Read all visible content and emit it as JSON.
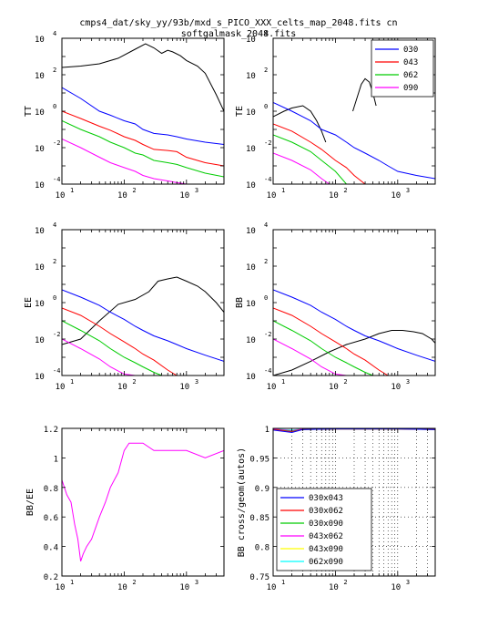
{
  "figure": {
    "title_line1": "cmps4_dat/sky_yy/93b/mxd_s_PICO_XXX_celts_map_2048.fits cn",
    "title_line2": "softgalmask_2048.fits"
  },
  "colors": {
    "030": "#0000ff",
    "043": "#ff0000",
    "062": "#00cc00",
    "090": "#ff00ff",
    "reference": "#000000",
    "030x043": "#0000ff",
    "030x062": "#ff0000",
    "030x090": "#00cc00",
    "043x062": "#ff00ff",
    "043x090": "#ffff00",
    "062x090": "#00ffff"
  },
  "chart_data": [
    {
      "type": "line",
      "panel": "TT",
      "ylabel": "TT",
      "xscale": "log",
      "yscale": "log",
      "xlim": [
        10,
        4000
      ],
      "ylim": [
        0.0001,
        10000.0
      ],
      "yticks": [
        {
          "base": "10",
          "exp": "-4"
        },
        {
          "base": "10",
          "exp": "-2"
        },
        {
          "base": "10",
          "exp": "0"
        },
        {
          "base": "10",
          "exp": "2"
        },
        {
          "base": "10",
          "exp": "4"
        }
      ],
      "xticks": [
        {
          "base": "10",
          "exp": "1"
        },
        {
          "base": "10",
          "exp": "2"
        },
        {
          "base": "10",
          "exp": "3"
        }
      ],
      "reference": {
        "name": "",
        "x": [
          10,
          20,
          40,
          80,
          150,
          220,
          300,
          400,
          500,
          600,
          800,
          1000,
          1500,
          2000,
          3000,
          4000
        ],
        "y": [
          250,
          300,
          400,
          800,
          2500,
          5000,
          3000,
          1500,
          2200,
          1800,
          1100,
          600,
          300,
          120,
          8,
          1
        ]
      },
      "series": [
        {
          "key": "030",
          "x": [
            10,
            20,
            40,
            60,
            100,
            150,
            200,
            300,
            500,
            700,
            1000,
            2000,
            4000
          ],
          "y": [
            20,
            5,
            1,
            0.6,
            0.3,
            0.2,
            0.1,
            0.06,
            0.05,
            0.04,
            0.03,
            0.02,
            0.015
          ]
        },
        {
          "key": "043",
          "x": [
            10,
            20,
            40,
            60,
            100,
            150,
            200,
            300,
            500,
            700,
            1000,
            2000,
            4000
          ],
          "y": [
            1,
            0.4,
            0.15,
            0.09,
            0.04,
            0.025,
            0.015,
            0.008,
            0.007,
            0.006,
            0.003,
            0.0015,
            0.001
          ]
        },
        {
          "key": "062",
          "x": [
            10,
            20,
            40,
            60,
            100,
            150,
            200,
            300,
            500,
            700,
            1000,
            2000,
            4000
          ],
          "y": [
            0.3,
            0.1,
            0.04,
            0.02,
            0.01,
            0.005,
            0.004,
            0.002,
            0.0015,
            0.0012,
            0.0008,
            0.0004,
            0.00025
          ]
        },
        {
          "key": "090",
          "x": [
            10,
            20,
            40,
            60,
            100,
            150,
            200,
            300,
            500,
            700,
            1000
          ],
          "y": [
            0.03,
            0.01,
            0.003,
            0.0015,
            0.0008,
            0.0005,
            0.0003,
            0.0002,
            0.00015,
            0.00012,
            0.0001
          ]
        }
      ]
    },
    {
      "type": "line",
      "panel": "TE",
      "ylabel": "TE",
      "xscale": "log",
      "yscale": "log",
      "xlim": [
        10,
        4000
      ],
      "ylim": [
        0.0001,
        10000.0
      ],
      "yticks": [
        {
          "base": "10",
          "exp": "-4"
        },
        {
          "base": "10",
          "exp": "-2"
        },
        {
          "base": "10",
          "exp": "0"
        },
        {
          "base": "10",
          "exp": "2"
        },
        {
          "base": "10",
          "exp": "4"
        }
      ],
      "xticks": [
        {
          "base": "10",
          "exp": "1"
        },
        {
          "base": "10",
          "exp": "2"
        },
        {
          "base": "10",
          "exp": "3"
        }
      ],
      "legend": {
        "placement": "top-right",
        "entries": [
          "030",
          "043",
          "062",
          "090"
        ]
      },
      "reference": {
        "name": "",
        "x": [
          10,
          15,
          20,
          30,
          40,
          50,
          60,
          70
        ],
        "y": [
          0.5,
          1,
          1.5,
          2,
          1,
          0.3,
          0.08,
          0.02
        ]
      },
      "reference2": {
        "name": "",
        "x": [
          190,
          230,
          260,
          300,
          350,
          400,
          450
        ],
        "y": [
          1,
          8,
          30,
          60,
          40,
          10,
          2
        ]
      },
      "series": [
        {
          "key": "030",
          "x": [
            10,
            20,
            40,
            60,
            100,
            150,
            200,
            300,
            500,
            700,
            1000,
            2000,
            4000
          ],
          "y": [
            3,
            1,
            0.3,
            0.1,
            0.05,
            0.02,
            0.01,
            0.005,
            0.002,
            0.001,
            0.0005,
            0.0003,
            0.0002
          ]
        },
        {
          "key": "043",
          "x": [
            10,
            20,
            40,
            60,
            100,
            150,
            200,
            300
          ],
          "y": [
            0.2,
            0.08,
            0.02,
            0.008,
            0.002,
            0.0008,
            0.0003,
            0.0001
          ]
        },
        {
          "key": "062",
          "x": [
            10,
            20,
            40,
            60,
            100,
            150
          ],
          "y": [
            0.05,
            0.02,
            0.006,
            0.002,
            0.0005,
            0.0001
          ]
        },
        {
          "key": "090",
          "x": [
            10,
            20,
            40,
            60,
            80
          ],
          "y": [
            0.005,
            0.002,
            0.0006,
            0.0002,
            0.0001
          ]
        }
      ]
    },
    {
      "type": "line",
      "panel": "EE",
      "ylabel": "EE",
      "xscale": "log",
      "yscale": "log",
      "xlim": [
        10,
        4000
      ],
      "ylim": [
        0.0001,
        10000.0
      ],
      "yticks": [
        {
          "base": "10",
          "exp": "-4"
        },
        {
          "base": "10",
          "exp": "-2"
        },
        {
          "base": "10",
          "exp": "0"
        },
        {
          "base": "10",
          "exp": "2"
        },
        {
          "base": "10",
          "exp": "4"
        }
      ],
      "xticks": [
        {
          "base": "10",
          "exp": "1"
        },
        {
          "base": "10",
          "exp": "2"
        },
        {
          "base": "10",
          "exp": "3"
        }
      ],
      "reference": {
        "name": "",
        "x": [
          10,
          20,
          40,
          80,
          150,
          250,
          350,
          500,
          700,
          1000,
          1500,
          2000,
          3000,
          4000
        ],
        "y": [
          0.005,
          0.01,
          0.1,
          0.8,
          1.5,
          4,
          15,
          20,
          25,
          15,
          8,
          4,
          1,
          0.3
        ]
      },
      "series": [
        {
          "key": "030",
          "x": [
            10,
            20,
            40,
            60,
            100,
            150,
            200,
            300,
            500,
            700,
            1000,
            2000,
            4000
          ],
          "y": [
            5,
            2,
            0.7,
            0.3,
            0.12,
            0.05,
            0.03,
            0.015,
            0.008,
            0.005,
            0.003,
            0.0013,
            0.0006
          ]
        },
        {
          "key": "043",
          "x": [
            10,
            20,
            40,
            60,
            100,
            150,
            200,
            300,
            500,
            700
          ],
          "y": [
            0.5,
            0.2,
            0.05,
            0.02,
            0.007,
            0.003,
            0.0015,
            0.0007,
            0.0002,
            0.0001
          ]
        },
        {
          "key": "062",
          "x": [
            10,
            20,
            40,
            60,
            100,
            150,
            200,
            300,
            400
          ],
          "y": [
            0.1,
            0.03,
            0.008,
            0.003,
            0.001,
            0.0005,
            0.0003,
            0.00015,
            0.0001
          ]
        },
        {
          "key": "090",
          "x": [
            10,
            20,
            40,
            60,
            100,
            150
          ],
          "y": [
            0.01,
            0.003,
            0.0008,
            0.0003,
            0.00012,
            0.0001
          ]
        }
      ]
    },
    {
      "type": "line",
      "panel": "BB",
      "ylabel": "BB",
      "xscale": "log",
      "yscale": "log",
      "xlim": [
        10,
        4000
      ],
      "ylim": [
        0.0001,
        10000.0
      ],
      "yticks": [
        {
          "base": "10",
          "exp": "-4"
        },
        {
          "base": "10",
          "exp": "-2"
        },
        {
          "base": "10",
          "exp": "0"
        },
        {
          "base": "10",
          "exp": "2"
        },
        {
          "base": "10",
          "exp": "4"
        }
      ],
      "xticks": [
        {
          "base": "10",
          "exp": "1"
        },
        {
          "base": "10",
          "exp": "2"
        },
        {
          "base": "10",
          "exp": "3"
        }
      ],
      "reference": {
        "name": "",
        "x": [
          10,
          20,
          40,
          80,
          150,
          300,
          500,
          800,
          1200,
          1800,
          2500,
          3500,
          4000
        ],
        "y": [
          0.0001,
          0.0002,
          0.0006,
          0.002,
          0.005,
          0.01,
          0.02,
          0.03,
          0.03,
          0.025,
          0.02,
          0.01,
          0.006
        ]
      },
      "series": [
        {
          "key": "030",
          "x": [
            10,
            20,
            40,
            60,
            100,
            150,
            200,
            300,
            500,
            700,
            1000,
            2000,
            4000
          ],
          "y": [
            5,
            2,
            0.7,
            0.3,
            0.12,
            0.05,
            0.03,
            0.015,
            0.008,
            0.005,
            0.003,
            0.0013,
            0.0006
          ]
        },
        {
          "key": "043",
          "x": [
            10,
            20,
            40,
            60,
            100,
            150,
            200,
            300,
            500,
            700
          ],
          "y": [
            0.5,
            0.2,
            0.05,
            0.02,
            0.007,
            0.003,
            0.0015,
            0.0007,
            0.0002,
            0.0001
          ]
        },
        {
          "key": "062",
          "x": [
            10,
            20,
            40,
            60,
            100,
            150,
            200,
            300,
            400
          ],
          "y": [
            0.1,
            0.03,
            0.008,
            0.003,
            0.001,
            0.0005,
            0.0003,
            0.00015,
            0.0001
          ]
        },
        {
          "key": "090",
          "x": [
            10,
            20,
            40,
            60,
            100,
            150
          ],
          "y": [
            0.01,
            0.003,
            0.0008,
            0.0003,
            0.00012,
            0.0001
          ]
        }
      ]
    },
    {
      "type": "line",
      "panel": "BB/EE",
      "ylabel": "BB/EE",
      "xscale": "log",
      "yscale": "linear",
      "xlim": [
        10,
        4000
      ],
      "ylim": [
        0.2,
        1.2
      ],
      "yticks": [
        {
          "base": "0.2"
        },
        {
          "base": "0.4"
        },
        {
          "base": "0.6"
        },
        {
          "base": "0.8"
        },
        {
          "base": "1"
        },
        {
          "base": "1.2"
        }
      ],
      "xticks": [
        {
          "base": "10",
          "exp": "1"
        },
        {
          "base": "10",
          "exp": "2"
        },
        {
          "base": "10",
          "exp": "3"
        }
      ],
      "series": [
        {
          "key": "090",
          "x": [
            10,
            12,
            14,
            16,
            18,
            20,
            22,
            25,
            30,
            40,
            50,
            60,
            80,
            100,
            120,
            150,
            200,
            300,
            500,
            1000,
            2000,
            4000
          ],
          "y": [
            0.85,
            0.75,
            0.7,
            0.55,
            0.45,
            0.3,
            0.35,
            0.4,
            0.45,
            0.6,
            0.7,
            0.8,
            0.9,
            1.05,
            1.1,
            1.1,
            1.1,
            1.05,
            1.05,
            1.05,
            1.0,
            1.05
          ]
        }
      ]
    },
    {
      "type": "line",
      "panel": "BB cross/geom(autos)",
      "ylabel": "BB cross/geom(autos)",
      "xscale": "log",
      "yscale": "linear",
      "xlim": [
        10,
        4000
      ],
      "ylim": [
        0.75,
        1.0
      ],
      "grid": true,
      "yticks": [
        {
          "base": "0.75"
        },
        {
          "base": "0.8"
        },
        {
          "base": "0.85"
        },
        {
          "base": "0.9"
        },
        {
          "base": "0.95"
        },
        {
          "base": "1"
        }
      ],
      "xticks": [
        {
          "base": "10",
          "exp": "1"
        },
        {
          "base": "10",
          "exp": "2"
        },
        {
          "base": "10",
          "exp": "3"
        }
      ],
      "legend": {
        "placement": "bottom-left",
        "entries": [
          "030x043",
          "030x062",
          "030x090",
          "043x062",
          "043x090",
          "062x090"
        ]
      },
      "series": [
        {
          "key": "030x043",
          "x": [
            10,
            20,
            30,
            100,
            1000,
            4000
          ],
          "y": [
            0.997,
            0.993,
            0.998,
            0.999,
            0.999,
            0.998
          ]
        },
        {
          "key": "030x062",
          "x": [
            10,
            20,
            30,
            100,
            1000,
            4000
          ],
          "y": [
            0.998,
            0.994,
            0.998,
            0.999,
            0.999,
            0.998
          ]
        },
        {
          "key": "030x090",
          "x": [
            10,
            20,
            30,
            100,
            1000,
            4000
          ],
          "y": [
            0.998,
            0.995,
            0.998,
            0.999,
            0.999,
            0.998
          ]
        },
        {
          "key": "043x062",
          "x": [
            10,
            20,
            30,
            100,
            1000,
            4000
          ],
          "y": [
            0.999,
            0.996,
            0.999,
            0.999,
            0.999,
            0.999
          ]
        },
        {
          "key": "043x090",
          "x": [
            10,
            20,
            30,
            100,
            1000,
            4000
          ],
          "y": [
            0.999,
            0.996,
            0.999,
            0.999,
            0.999,
            0.999
          ]
        },
        {
          "key": "062x090",
          "x": [
            10,
            20,
            30,
            100,
            1000,
            4000
          ],
          "y": [
            0.999,
            0.997,
            0.999,
            1.0,
            1.0,
            0.999
          ]
        }
      ]
    }
  ]
}
